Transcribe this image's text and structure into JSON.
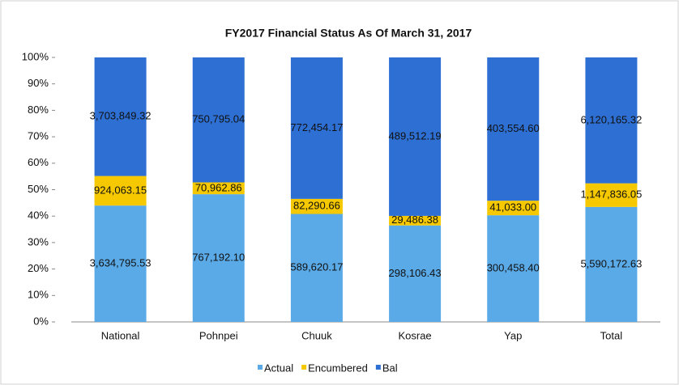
{
  "chart_data": {
    "type": "stacked_bar_100",
    "title": "FY2017 Financial Status As Of  March 31, 2017",
    "categories": [
      "National",
      "Pohnpei",
      "Chuuk",
      "Kosrae",
      "Yap",
      "Total"
    ],
    "series": [
      {
        "values": [
          0,
          0,
          0,
          0,
          0,
          0
        ],
        "color": "#5aaae8"
      },
      {
        "name": "Actual",
        "color": "#5aaae8",
        "values": [
          3634795.53,
          767192.1,
          589620.17,
          298106.43,
          300458.4,
          5590172.63
        ],
        "value_labels": [
          "3,634,795.53",
          "767,192.10",
          "589,620.17",
          "298,106.43",
          "300,458.40",
          "5,590,172.63"
        ]
      },
      {
        "name": "Encumbered",
        "color": "#f6c800",
        "values": [
          924063.15,
          70962.86,
          82290.66,
          29486.38,
          41033.0,
          1147836.05
        ],
        "value_labels": [
          "924,063.15",
          "70,962.86",
          "82,290.66",
          "29,486.38",
          "41,033.00",
          "1,147,836.05"
        ]
      },
      {
        "name": "Bal",
        "color": "#2d6fd2",
        "values": [
          3703849.32,
          750795.04,
          772454.17,
          489512.19,
          403554.6,
          6120165.32
        ],
        "value_labels": [
          "3,703,849.32",
          "750,795.04",
          "772,454.17",
          "489,512.19",
          "403,554.60",
          "6,120,165.32"
        ]
      }
    ],
    "ylim": [
      0,
      100
    ],
    "yticks": [
      {
        "value": 0,
        "label": "0%"
      },
      {
        "value": 10,
        "label": "10%"
      },
      {
        "value": 20,
        "label": "20%"
      },
      {
        "value": 30,
        "label": "30%"
      },
      {
        "value": 40,
        "label": "40%"
      },
      {
        "value": 50,
        "label": "50%"
      },
      {
        "value": 60,
        "label": "60%"
      },
      {
        "value": 70,
        "label": "70%"
      },
      {
        "value": 80,
        "label": "80%"
      },
      {
        "value": 90,
        "label": "90%"
      },
      {
        "value": 100,
        "label": "100%"
      }
    ],
    "grid": false,
    "legend": "bottom"
  }
}
